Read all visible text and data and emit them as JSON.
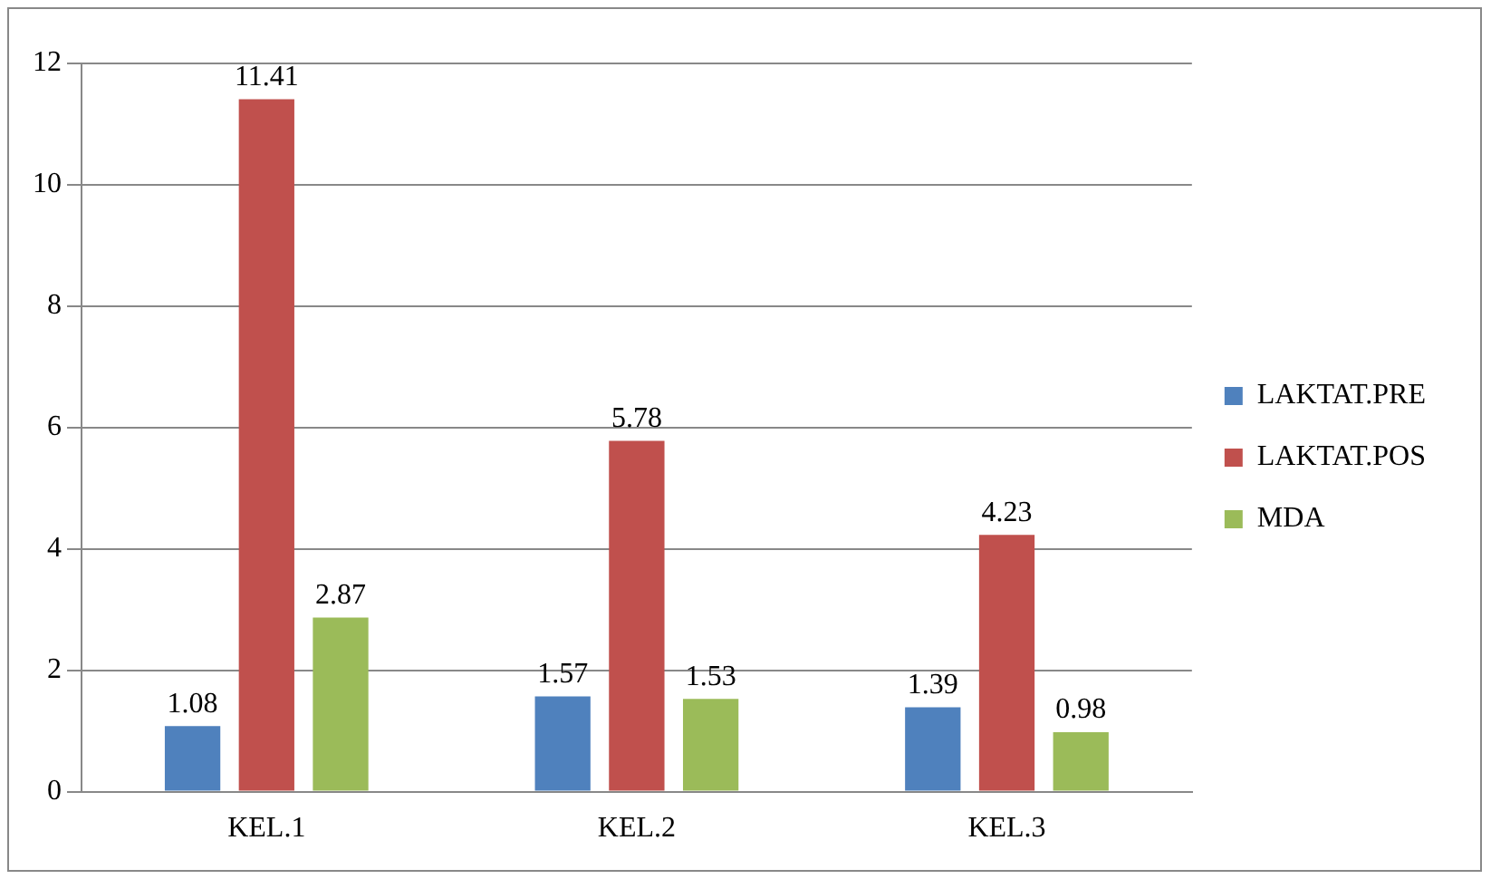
{
  "chart_data": {
    "type": "bar",
    "categories": [
      "KEL.1",
      "KEL.2",
      "KEL.3"
    ],
    "series": [
      {
        "name": "LAKTAT.PRE",
        "color": "#4f81bd",
        "values": [
          1.08,
          1.57,
          1.39
        ]
      },
      {
        "name": "LAKTAT.POS",
        "color": "#c0504d",
        "values": [
          11.41,
          5.78,
          4.23
        ]
      },
      {
        "name": "MDA",
        "color": "#9bbb59",
        "values": [
          2.87,
          1.53,
          0.98
        ]
      }
    ],
    "ylim": [
      0,
      12
    ],
    "yticks": [
      0,
      2,
      4,
      6,
      8,
      10,
      12
    ],
    "grid": "y",
    "legend": "right",
    "data_labels": true
  }
}
